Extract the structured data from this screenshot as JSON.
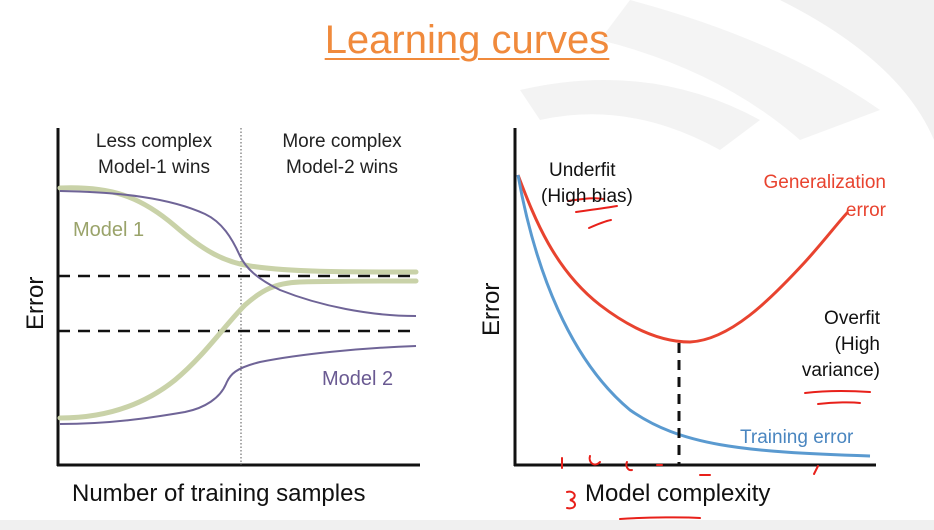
{
  "slide": {
    "title": "Learning curves"
  },
  "left_chart": {
    "header_left_line1": "Less complex",
    "header_left_line2": "Model-1 wins",
    "header_right_line1": "More complex",
    "header_right_line2": "Model-2 wins",
    "ylabel": "Error",
    "xlabel": "Number of training samples",
    "model1_label": "Model 1",
    "model2_label": "Model 2",
    "colors": {
      "model1": "#c9d2a8",
      "model2": "#6f6497",
      "axis": "#111111"
    }
  },
  "right_chart": {
    "ylabel": "Error",
    "xlabel": "Model complexity",
    "underfit_line1": "Underfit",
    "underfit_line2": "(High bias)",
    "generalization_line1": "Generalization",
    "generalization_line2": "error",
    "overfit_line1": "Overfit",
    "overfit_line2": "(High",
    "overfit_line3": "variance)",
    "training_label": "Training error",
    "colors": {
      "generalization": "#e8432f",
      "training": "#4a8fc6",
      "annotation": "#e8201a"
    }
  }
}
